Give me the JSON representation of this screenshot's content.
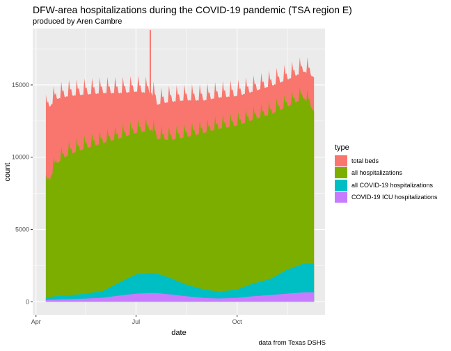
{
  "chart_data": {
    "type": "area",
    "title": "DFW-area hospitalizations during the COVID-19 pandemic (TSA region E)",
    "subtitle": "produced by Aren Cambre",
    "caption": "data from Texas DSHS",
    "xlabel": "date",
    "ylabel": "count",
    "x_ticks": [
      "Apr",
      "Jul",
      "Oct"
    ],
    "y_ticks": [
      0,
      5000,
      10000,
      15000
    ],
    "xlim": [
      "2020-03-29",
      "2020-12-20"
    ],
    "ylim": [
      -900,
      18900
    ],
    "grid": true,
    "legend_title": "type",
    "legend_position": "right",
    "x_dates": [
      "2020-04-10",
      "2020-04-20",
      "2020-05-01",
      "2020-05-15",
      "2020-06-01",
      "2020-06-15",
      "2020-07-01",
      "2020-07-15",
      "2020-07-20",
      "2020-08-01",
      "2020-08-15",
      "2020-09-01",
      "2020-09-15",
      "2020-10-01",
      "2020-10-15",
      "2020-11-01",
      "2020-11-15",
      "2020-12-01",
      "2020-12-10"
    ],
    "series": [
      {
        "name": "total beds",
        "color": "#F8766D",
        "values": [
          13500,
          14300,
          14500,
          14600,
          14700,
          14700,
          14800,
          14700,
          13900,
          14100,
          14200,
          14200,
          14400,
          14500,
          14800,
          15200,
          15600,
          16200,
          15800
        ]
      },
      {
        "name": "all hospitalizations",
        "color": "#7CAE00",
        "values": [
          8100,
          9800,
          10400,
          10800,
          11200,
          11500,
          11900,
          12100,
          11500,
          11400,
          11600,
          11900,
          12200,
          12400,
          12800,
          13200,
          13700,
          14300,
          13400
        ]
      },
      {
        "name": "all COVID-19 hospitalizations",
        "color": "#00BFC4",
        "values": [
          280,
          400,
          450,
          550,
          750,
          1300,
          1900,
          2000,
          1950,
          1650,
          1200,
          850,
          700,
          850,
          1250,
          1600,
          2200,
          2650,
          2650
        ]
      },
      {
        "name": "COVID-19 ICU hospitalizations",
        "color": "#C77CFF",
        "values": [
          130,
          160,
          180,
          220,
          280,
          420,
          560,
          610,
          600,
          510,
          390,
          260,
          230,
          270,
          380,
          470,
          560,
          650,
          650
        ]
      }
    ],
    "annotations": [
      {
        "date": "2020-07-14",
        "value": 18800
      }
    ]
  }
}
